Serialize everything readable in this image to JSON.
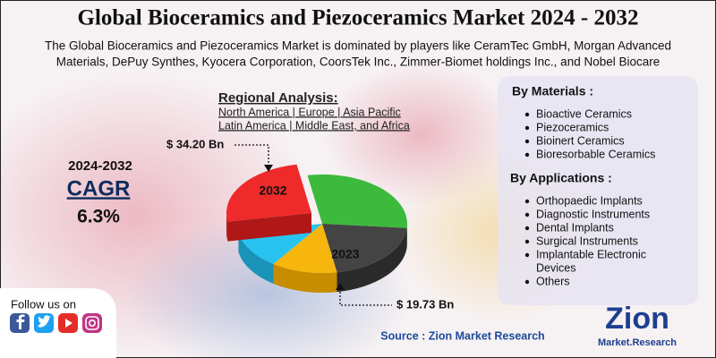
{
  "header": {
    "title": "Global Bioceramics and Piezoceramics Market 2024 - 2032",
    "subtitle_lines": [
      "The Global Bioceramics and Piezoceramics Market is dominated by players like CeramTec GmbH, Morgan Advanced",
      "Materials, DePuy Synthes, Kyocera Corporation, CoorsTek Inc., Zimmer-Biomet holdings Inc., and Nobel Biocare"
    ]
  },
  "regional": {
    "title": "Regional Analysis:",
    "lines": [
      "North America | Europe | Asia Pacific",
      "Latin America | Middle East, and Africa"
    ]
  },
  "cagr": {
    "period": "2024-2032",
    "label": "CAGR",
    "value": "6.3%"
  },
  "pie": {
    "label_2032": "2032",
    "label_2023": "2023",
    "value_2032": "$ 34.20 Bn",
    "value_2023": "$ 19.73 Bn"
  },
  "materials": {
    "title": "By Materials :",
    "items": [
      "Bioactive Ceramics",
      "Piezoceramics",
      "Bioinert Ceramics",
      "Bioresorbable Ceramics"
    ]
  },
  "applications": {
    "title": "By Applications :",
    "items": [
      "Orthopaedic Implants",
      "Diagnostic Instruments",
      "Dental Implants",
      "Surgical Instruments",
      "Implantable Electronic",
      "Devices",
      "Others"
    ]
  },
  "social": {
    "title": "Follow us on"
  },
  "source": "Source : Zion Market Research",
  "logo": {
    "name": "Zion",
    "sub": "Market.Research"
  }
}
